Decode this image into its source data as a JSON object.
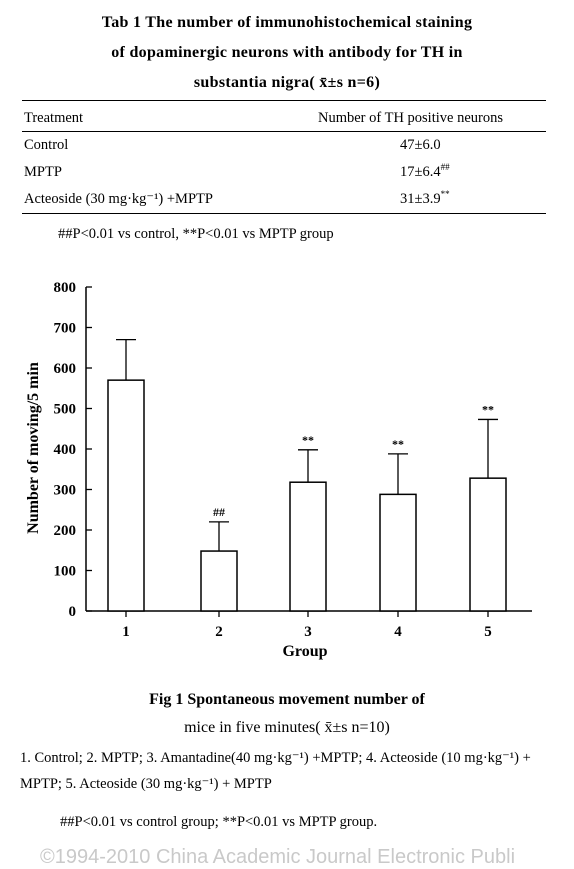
{
  "table": {
    "caption_line1": "Tab 1   The number of immunohistochemical staining",
    "caption_line2": "of dopaminergic neurons with antibody for TH in",
    "caption_line3": "substantia nigra( x̄±s  n=6)",
    "header": {
      "treatment": "Treatment",
      "count": "Number of TH positive neurons"
    },
    "rows": [
      {
        "treatment": "Control",
        "count": "47±6.0",
        "mark": ""
      },
      {
        "treatment": "MPTP",
        "count": "17±6.4",
        "mark": "##"
      },
      {
        "treatment": "Acteoside (30 mg·kg⁻¹) +MPTP",
        "count": "31±3.9",
        "mark": "**"
      }
    ],
    "note": "##P<0.01 vs control, **P<0.01 vs MPTP group"
  },
  "chart_data": {
    "type": "bar",
    "categories": [
      "1",
      "2",
      "3",
      "4",
      "5"
    ],
    "values": [
      570,
      148,
      318,
      288,
      328
    ],
    "errors": [
      100,
      72,
      80,
      100,
      145
    ],
    "annotations": [
      "",
      "##",
      "**",
      "**",
      "**"
    ],
    "xlabel": "Group",
    "ylabel": "Number of moving/5 min",
    "ylim": [
      0,
      800
    ],
    "yticks": [
      0,
      100,
      200,
      300,
      400,
      500,
      600,
      700,
      800
    ],
    "grid": false
  },
  "figure": {
    "caption_line1": "Fig 1   Spontaneous movement number of",
    "caption_line2": "mice in five minutes( x̄±s  n=10)",
    "legend": "1. Control; 2. MPTP; 3. Amantadine(40 mg·kg⁻¹) +MPTP; 4. Acteoside (10 mg·kg⁻¹) + MPTP; 5. Acteoside (30 mg·kg⁻¹) + MPTP",
    "note": "##P<0.01 vs control group; **P<0.01 vs MPTP group.",
    "watermark": "©1994-2010 China Academic Journal Electronic Publi"
  }
}
